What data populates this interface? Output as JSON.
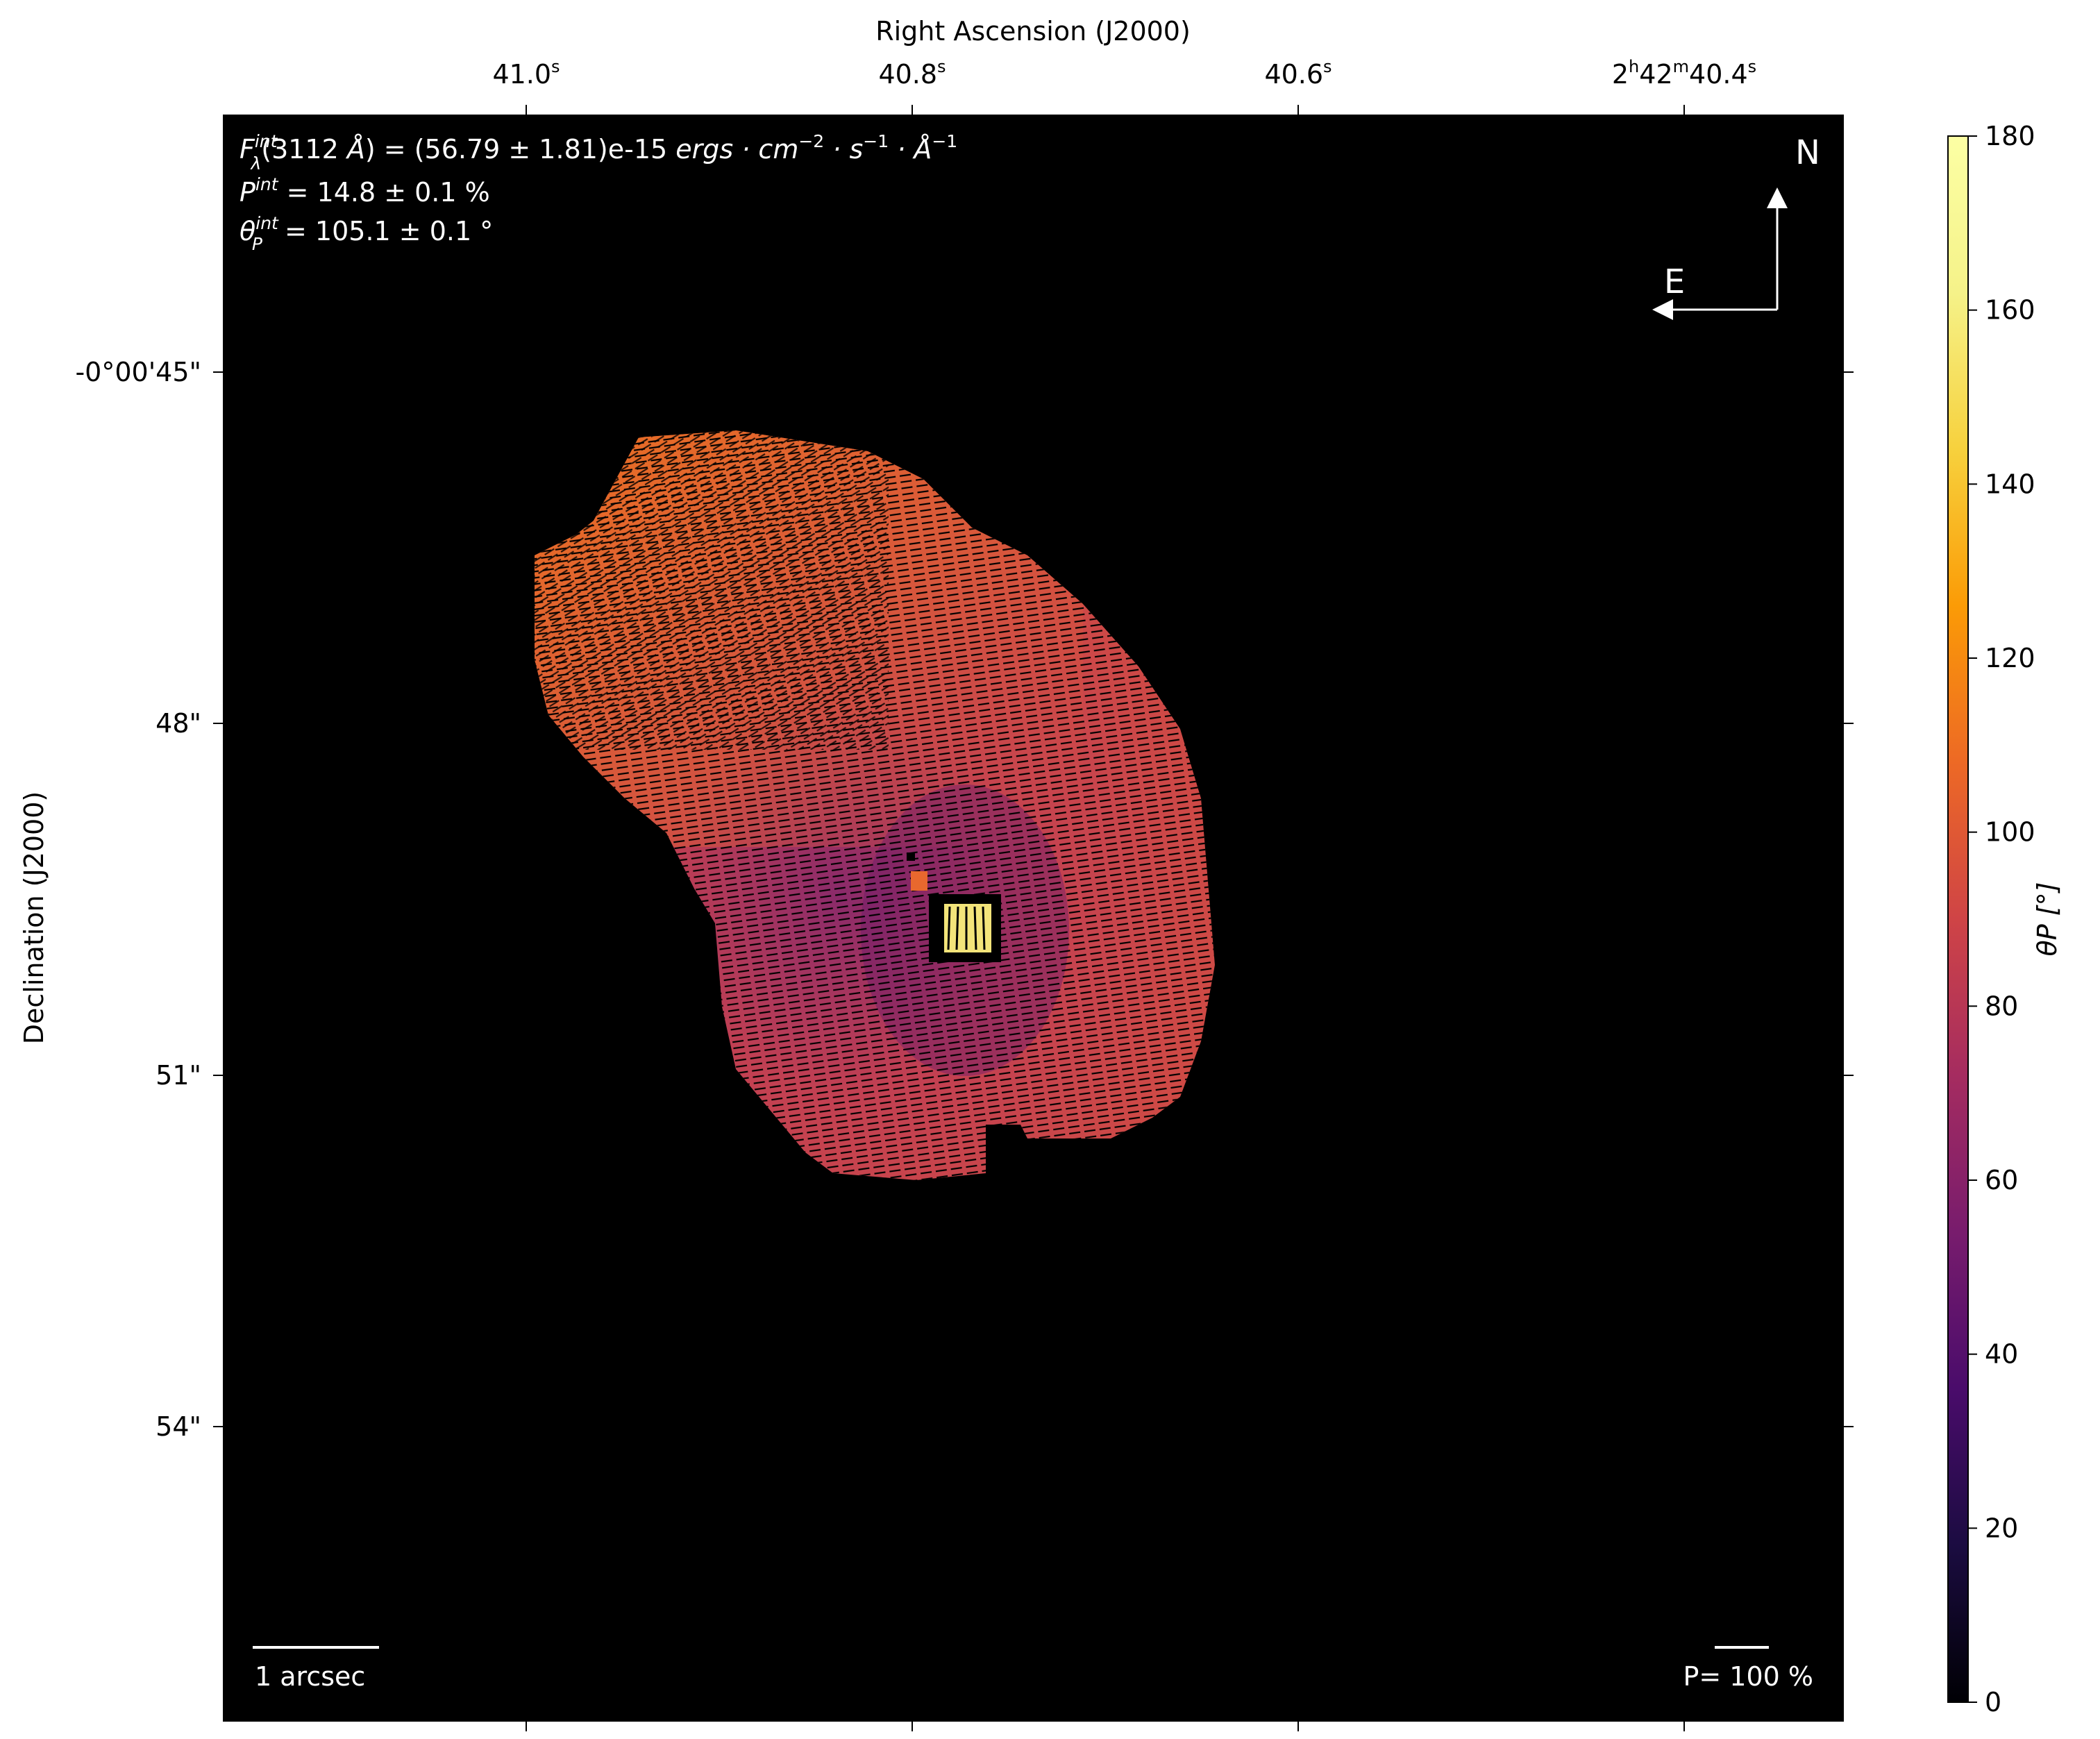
{
  "chart_data": {
    "type": "heatmap",
    "title": "",
    "xlabel": "Right Ascension (J2000)",
    "ylabel": "Declination (J2000)",
    "x_ticks": [
      {
        "main": "41.0",
        "sup": "s",
        "prefix": ""
      },
      {
        "main": "40.8",
        "sup": "s",
        "prefix": ""
      },
      {
        "main": "40.6",
        "sup": "s",
        "prefix": ""
      },
      {
        "main": "40.4",
        "sup": "s",
        "prefix": "2h42m"
      }
    ],
    "x_tick_labels": [
      "41.0s",
      "40.8s",
      "40.6s",
      "2h42m40.4s"
    ],
    "y_tick_labels": [
      "-0°00'45\"",
      "48\"",
      "51\"",
      "54\""
    ],
    "colorbar": {
      "label": "θP [°]",
      "colormap": "inferno",
      "range": [
        0,
        180
      ],
      "ticks": [
        0,
        20,
        40,
        60,
        80,
        100,
        120,
        140,
        160,
        180
      ]
    },
    "annotations": {
      "flux": "F_λ^int(3112 Å) = (56.79 ± 1.81)e-15 ergs·cm⁻²·s⁻¹·Å⁻¹",
      "pol_degree": "P^int = 14.8 ± 0.1 %",
      "pol_angle": "θ_P^int = 105.1 ± 0.1 °"
    },
    "compass": {
      "north": "N",
      "east": "E"
    },
    "scalebar_angular": "1 arcsec",
    "scalebar_pol": "P= 100 %",
    "integrated_values": {
      "flux": 56.79,
      "flux_err": 1.81,
      "flux_exp": -15,
      "wavelength_A": 3112,
      "P_percent": 14.8,
      "P_err": 0.1,
      "theta_deg": 105.1,
      "theta_err": 0.1
    },
    "map_description_values": {
      "dominant_angle_deg": 100,
      "northeast_lobe_angle_deg": 125,
      "nucleus_angle_deg": 175,
      "dark_lobe_angle_deg": 60
    },
    "grid": false
  },
  "colors": {
    "background": "#000000",
    "inferno_low": "#000004",
    "inferno_high": "#fcffa4"
  }
}
